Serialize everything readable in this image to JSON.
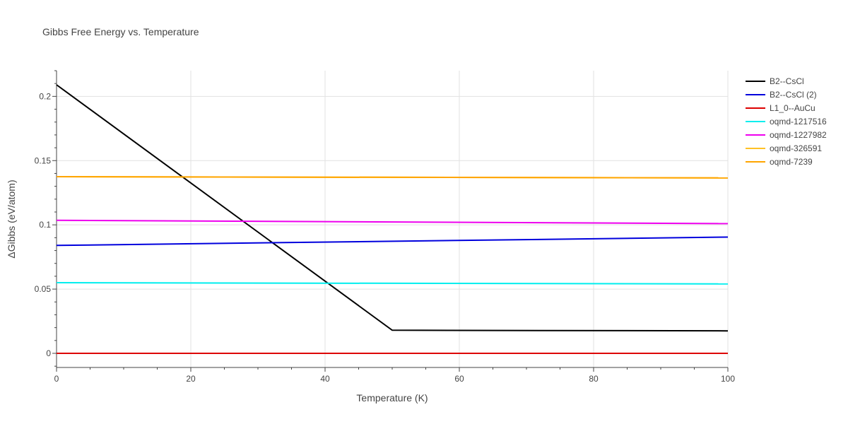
{
  "chart_data": {
    "type": "line",
    "title": "Gibbs Free Energy vs. Temperature",
    "xlabel": "Temperature (K)",
    "ylabel": "ΔGibbs (eV/atom)",
    "xlim": [
      0,
      100
    ],
    "ylim": [
      -0.011,
      0.22
    ],
    "xticks": [
      0,
      20,
      40,
      60,
      80,
      100
    ],
    "xtick_labels": [
      "0",
      "20",
      "40",
      "60",
      "80",
      "100"
    ],
    "yticks": [
      0,
      0.05,
      0.1,
      0.15,
      0.2
    ],
    "ytick_labels": [
      "0",
      "0.05",
      "0.1",
      "0.15",
      "0.2"
    ],
    "grid": true,
    "legend_position": "right",
    "series": [
      {
        "name": "B2--CsCl",
        "color": "#000000",
        "x": [
          0,
          50,
          100
        ],
        "y": [
          0.209,
          0.018,
          0.0175
        ]
      },
      {
        "name": "B2--CsCl (2)",
        "color": "#0000dd",
        "x": [
          0,
          100
        ],
        "y": [
          0.084,
          0.0905
        ]
      },
      {
        "name": "L1_0--AuCu",
        "color": "#dd0000",
        "x": [
          0,
          100
        ],
        "y": [
          0.0,
          0.0
        ]
      },
      {
        "name": "oqmd-1217516",
        "color": "#00eeee",
        "x": [
          0,
          100
        ],
        "y": [
          0.055,
          0.054
        ]
      },
      {
        "name": "oqmd-1227982",
        "color": "#ee00ee",
        "x": [
          0,
          100
        ],
        "y": [
          0.1035,
          0.101
        ]
      },
      {
        "name": "oqmd-326591",
        "color": "#ffc125",
        "x": [
          0,
          100
        ],
        "y": [
          0.1375,
          0.1365
        ]
      },
      {
        "name": "oqmd-7239",
        "color": "#ffa500",
        "x": [
          0,
          100
        ],
        "y": [
          0.1375,
          0.1365
        ]
      }
    ]
  }
}
